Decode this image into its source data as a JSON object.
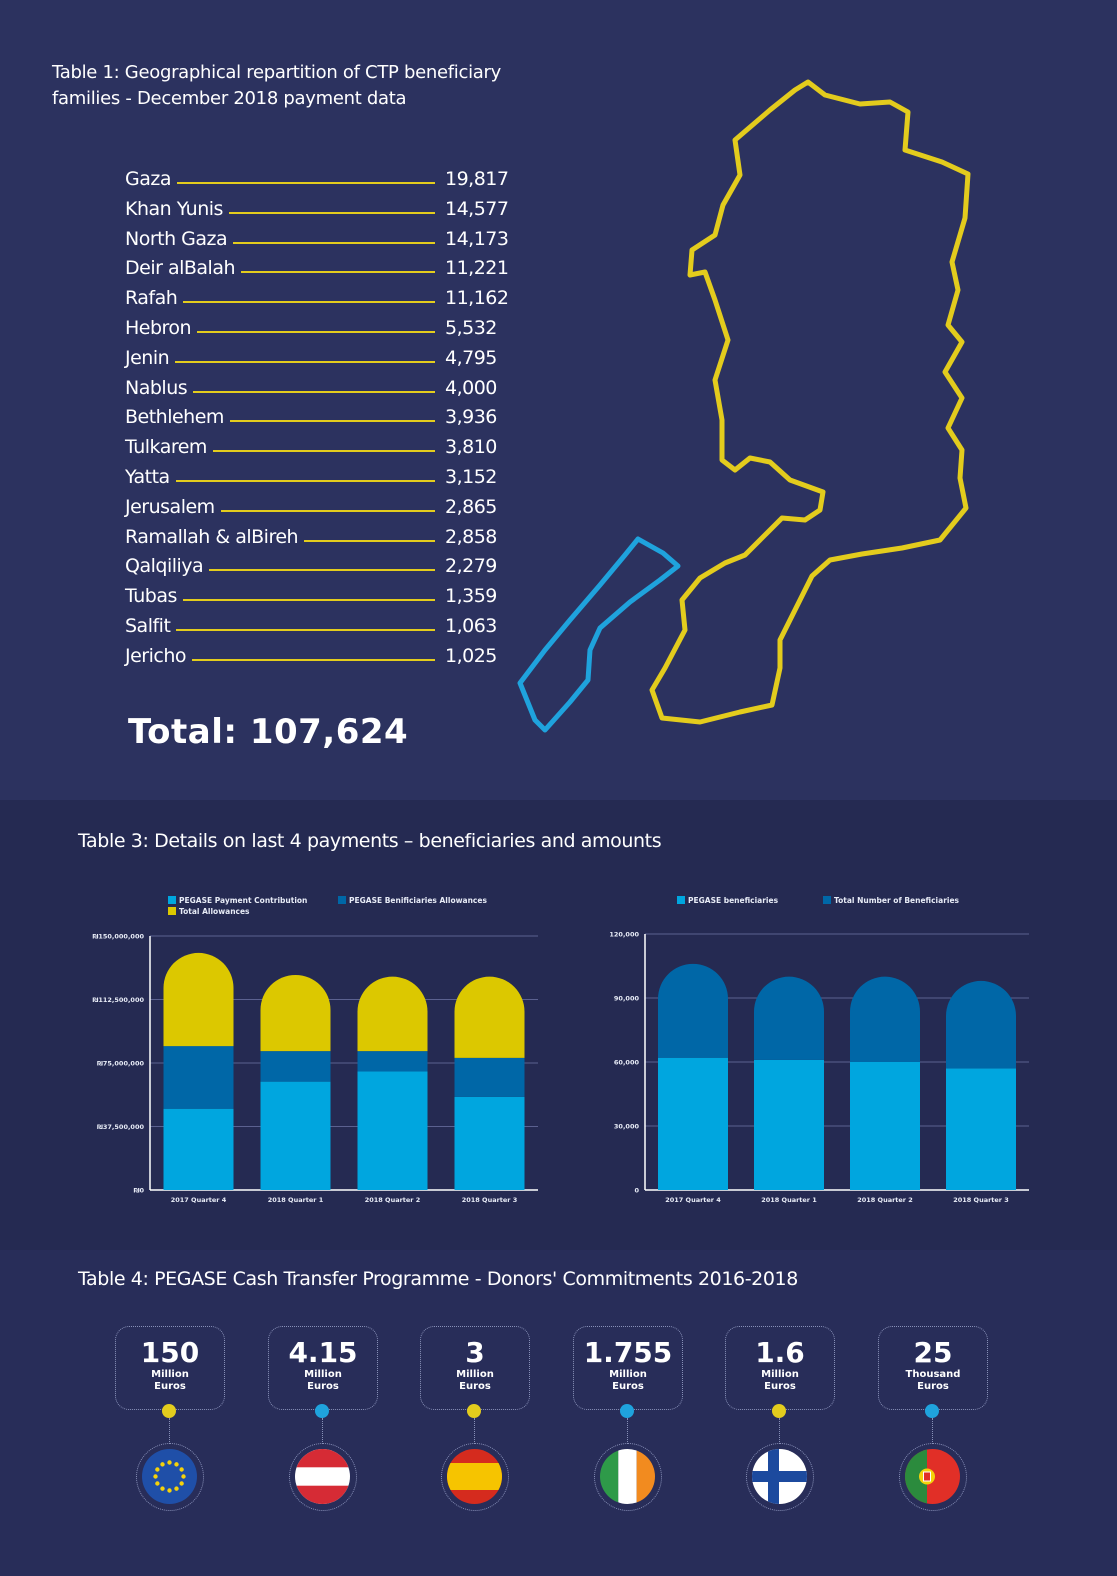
{
  "table1": {
    "title": "Table 1: Geographical repartition of CTP beneficiary families - December 2018 payment data",
    "rows": [
      {
        "name": "Gaza",
        "value": "19,817"
      },
      {
        "name": "Khan Yunis",
        "value": "14,577"
      },
      {
        "name": "North Gaza",
        "value": "14,173"
      },
      {
        "name": "Deir alBalah",
        "value": "11,221"
      },
      {
        "name": "Rafah",
        "value": "11,162"
      },
      {
        "name": "Hebron",
        "value": "5,532"
      },
      {
        "name": "Jenin",
        "value": "4,795"
      },
      {
        "name": "Nablus",
        "value": "4,000"
      },
      {
        "name": "Bethlehem",
        "value": "3,936"
      },
      {
        "name": "Tulkarem",
        "value": "3,810"
      },
      {
        "name": "Yatta",
        "value": "3,152"
      },
      {
        "name": "Jerusalem",
        "value": "2,865"
      },
      {
        "name": "Ramallah & alBireh",
        "value": "2,858"
      },
      {
        "name": "Qalqiliya",
        "value": "2,279"
      },
      {
        "name": "Tubas",
        "value": "1,359"
      },
      {
        "name": "Salfit",
        "value": "1,063"
      },
      {
        "name": "Jericho",
        "value": "1,025"
      }
    ],
    "total": "Total: 107,624"
  },
  "table3": {
    "title": "Table 3: Details on last 4 payments – beneficiaries and amounts"
  },
  "table4": {
    "title": "Table 4: PEGASE Cash Transfer Programme - Donors' Commitments 2016-2018",
    "donors": [
      {
        "amount": "150",
        "unit1": "Million",
        "unit2": "Euros",
        "dot": "#e3cc1d",
        "flag": "eu"
      },
      {
        "amount": "4.15",
        "unit1": "Million",
        "unit2": "Euros",
        "dot": "#1fa3dd",
        "flag": "austria"
      },
      {
        "amount": "3",
        "unit1": "Million",
        "unit2": "Euros",
        "dot": "#e3cc1d",
        "flag": "spain"
      },
      {
        "amount": "1.755",
        "unit1": "Million",
        "unit2": "Euros",
        "dot": "#1fa3dd",
        "flag": "ireland"
      },
      {
        "amount": "1.6",
        "unit1": "Million",
        "unit2": "Euros",
        "dot": "#e3cc1d",
        "flag": "finland"
      },
      {
        "amount": "25",
        "unit1": "Thousand",
        "unit2": "Euros",
        "dot": "#1fa3dd",
        "flag": "portugal"
      }
    ]
  },
  "colors": {
    "yellow": "#dcc800",
    "light_blue": "#00a6df",
    "dark_blue": "#0067a7",
    "map_yellow": "#e3cc1d",
    "map_blue": "#1fa3dd"
  },
  "chart_data": [
    {
      "type": "bar",
      "stacked": true,
      "categories": [
        "2017 Quarter 4",
        "2018 Quarter 1",
        "2018 Quarter 2",
        "2018 Quarter 3"
      ],
      "series": [
        {
          "name": "PEGASE Payment Contribution",
          "values": [
            48000000,
            64000000,
            70000000,
            55000000
          ]
        },
        {
          "name": "PEGASE Benificiaries Allowances",
          "values": [
            37000000,
            18000000,
            12000000,
            23000000
          ]
        },
        {
          "name": "Total Allowances",
          "values": [
            55000000,
            45000000,
            44000000,
            48000000
          ]
        }
      ],
      "ylim": [
        0,
        150000000
      ],
      "yticks": [
        "₪0",
        "₪37,500,000",
        "₪75,000,000",
        "₪112,500,000",
        "₪150,000,000"
      ],
      "legend": "top"
    },
    {
      "type": "bar",
      "stacked": true,
      "categories": [
        "2017 Quarter 4",
        "2018 Quarter 1",
        "2018 Quarter 2",
        "2018 Quarter 3"
      ],
      "series": [
        {
          "name": "PEGASE beneficiaries",
          "values": [
            62000,
            61000,
            60000,
            57000
          ]
        },
        {
          "name": "Total Number of Beneficiaries",
          "values": [
            44000,
            39000,
            40000,
            41000
          ]
        }
      ],
      "ylim": [
        0,
        120000
      ],
      "yticks": [
        "0",
        "30,000",
        "60,000",
        "90,000",
        "120,000"
      ],
      "legend": "top"
    }
  ]
}
